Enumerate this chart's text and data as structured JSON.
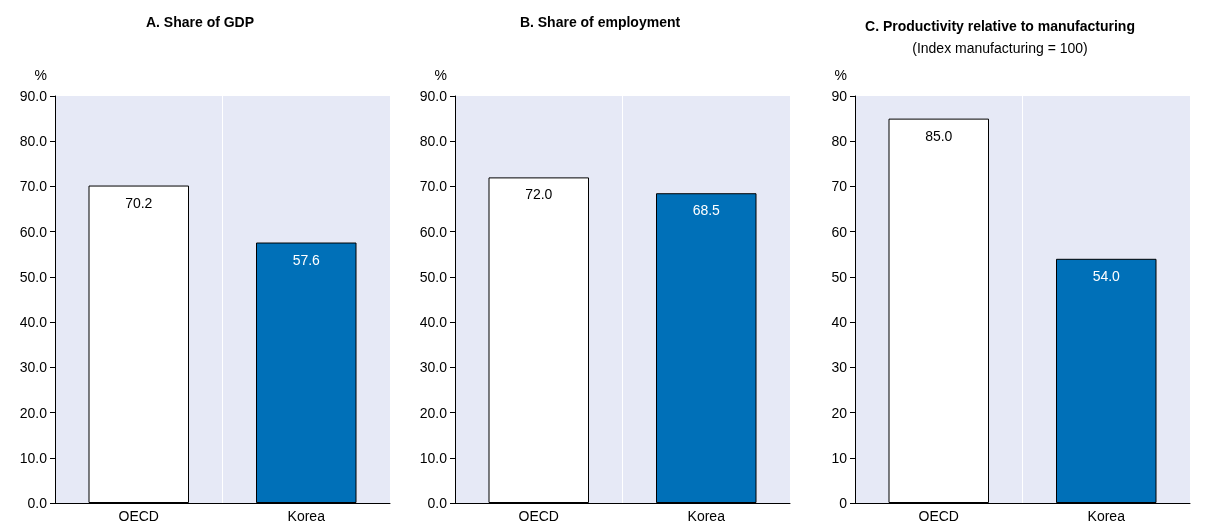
{
  "chart_data": [
    {
      "type": "bar",
      "title": "A. Share of GDP",
      "ylabel": "%",
      "categories": [
        "OECD",
        "Korea"
      ],
      "values": [
        70.2,
        57.6
      ],
      "colors": [
        "#ffffff",
        "#0070b8"
      ],
      "value_labels": [
        "70.2",
        "57.6"
      ],
      "ylim": [
        0,
        90
      ],
      "yticks": [
        {
          "value": 0,
          "label": "0.0"
        },
        {
          "value": 10,
          "label": "10.0"
        },
        {
          "value": 20,
          "label": "20.0"
        },
        {
          "value": 30,
          "label": "30.0"
        },
        {
          "value": 40,
          "label": "40.0"
        },
        {
          "value": 50,
          "label": "50.0"
        },
        {
          "value": 60,
          "label": "60.0"
        },
        {
          "value": 70,
          "label": "70.0"
        },
        {
          "value": 80,
          "label": "80.0"
        },
        {
          "value": 90,
          "label": "90.0"
        }
      ],
      "grid": "x"
    },
    {
      "type": "bar",
      "title": "B. Share of employment",
      "ylabel": "%",
      "categories": [
        "OECD",
        "Korea"
      ],
      "values": [
        72.0,
        68.5
      ],
      "colors": [
        "#ffffff",
        "#0070b8"
      ],
      "value_labels": [
        "72.0",
        "68.5"
      ],
      "ylim": [
        0,
        90
      ],
      "yticks": [
        {
          "value": 0,
          "label": "0.0"
        },
        {
          "value": 10,
          "label": "10.0"
        },
        {
          "value": 20,
          "label": "20.0"
        },
        {
          "value": 30,
          "label": "30.0"
        },
        {
          "value": 40,
          "label": "40.0"
        },
        {
          "value": 50,
          "label": "50.0"
        },
        {
          "value": 60,
          "label": "60.0"
        },
        {
          "value": 70,
          "label": "70.0"
        },
        {
          "value": 80,
          "label": "80.0"
        },
        {
          "value": 90,
          "label": "90.0"
        }
      ],
      "grid": "x"
    },
    {
      "type": "bar",
      "title": "C. Productivity relative to manufacturing",
      "subtitle": "(Index manufacturing = 100)",
      "ylabel": "%",
      "categories": [
        "OECD",
        "Korea"
      ],
      "values": [
        85.0,
        54.0
      ],
      "colors": [
        "#ffffff",
        "#0070b8"
      ],
      "value_labels": [
        "85.0",
        "54.0"
      ],
      "ylim": [
        0,
        90
      ],
      "yticks": [
        0,
        10,
        20,
        30,
        40,
        50,
        60,
        70,
        80,
        90
      ],
      "grid": "x"
    }
  ]
}
